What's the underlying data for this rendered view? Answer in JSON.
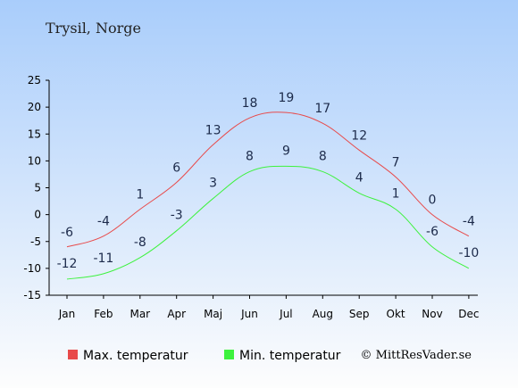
{
  "title": "Trysil, Norge",
  "credit": "© MittResVader.se",
  "colors": {
    "max": "#e84a4a",
    "min": "#3df23d",
    "bg_top": "#a9cdfb",
    "bg_bottom": "#fdfdfd"
  },
  "chart_data": {
    "type": "line",
    "categories": [
      "Jan",
      "Feb",
      "Mar",
      "Apr",
      "Maj",
      "Jun",
      "Jul",
      "Aug",
      "Sep",
      "Okt",
      "Nov",
      "Dec"
    ],
    "series": [
      {
        "name": "Max. temperatur",
        "values": [
          -6,
          -4,
          1,
          6,
          13,
          18,
          19,
          17,
          12,
          7,
          0,
          -4
        ]
      },
      {
        "name": "Min. temperatur",
        "values": [
          -12,
          -11,
          -8,
          -3,
          3,
          8,
          9,
          8,
          4,
          1,
          -6,
          -10
        ]
      }
    ],
    "y_ticks": [
      25,
      20,
      15,
      10,
      5,
      0,
      -5,
      -10,
      -15
    ],
    "ylim": [
      -15,
      25
    ],
    "grid": false,
    "legend_position": "bottom"
  }
}
